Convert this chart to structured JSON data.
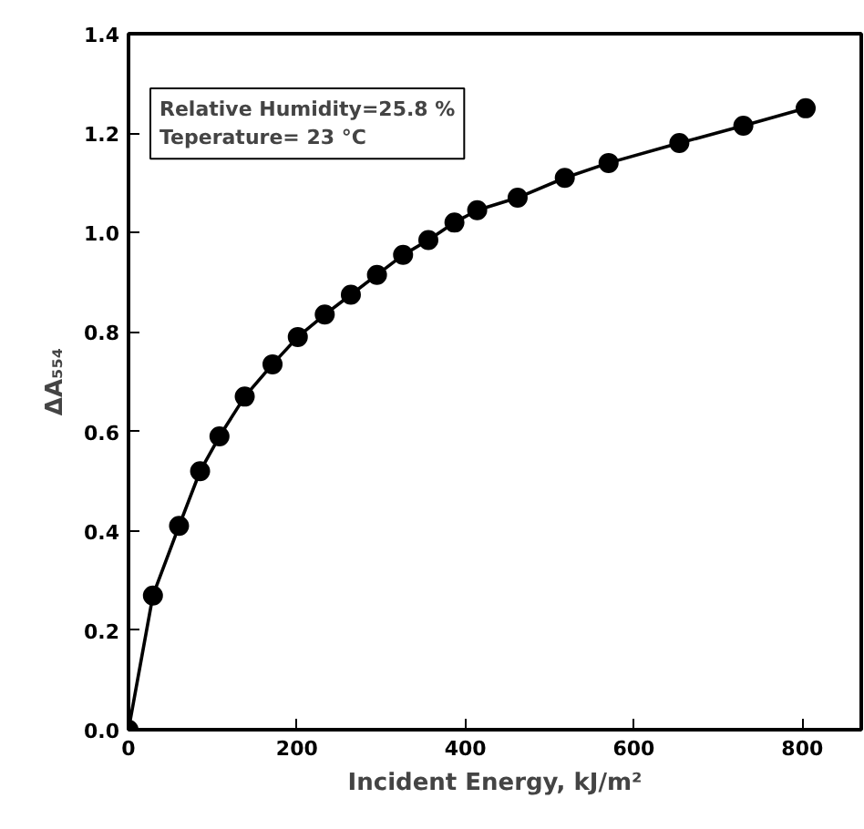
{
  "chart_data": {
    "type": "line",
    "xlabel": "Incident Energy, kJ/m²",
    "ylabel": "ΔA₅₅₄",
    "annotations": [
      "Relative Humidity=25.8 %",
      "Teperature= 23 °C"
    ],
    "x": [
      0,
      29,
      60,
      85,
      108,
      138,
      171,
      201,
      233,
      264,
      295,
      326,
      356,
      387,
      414,
      462,
      518,
      570,
      654,
      730,
      804
    ],
    "series": [
      {
        "color": "#000000",
        "values": [
          0,
          0.27,
          0.41,
          0.52,
          0.59,
          0.67,
          0.735,
          0.79,
          0.835,
          0.875,
          0.915,
          0.955,
          0.985,
          1.02,
          1.045,
          1.07,
          1.11,
          1.14,
          1.18,
          1.215,
          1.25
        ]
      }
    ],
    "xlim": [
      0,
      870
    ],
    "xticks": [
      0,
      200,
      400,
      600,
      800
    ],
    "ylim": [
      0,
      1.4
    ],
    "yticks": [
      {
        "value": 0,
        "label": "0.0"
      },
      0.2,
      0.4,
      0.6,
      0.8,
      {
        "value": 1,
        "label": "1.0"
      },
      1.2,
      1.4
    ],
    "marker": "circle",
    "line_style": "solid",
    "grid": false
  }
}
